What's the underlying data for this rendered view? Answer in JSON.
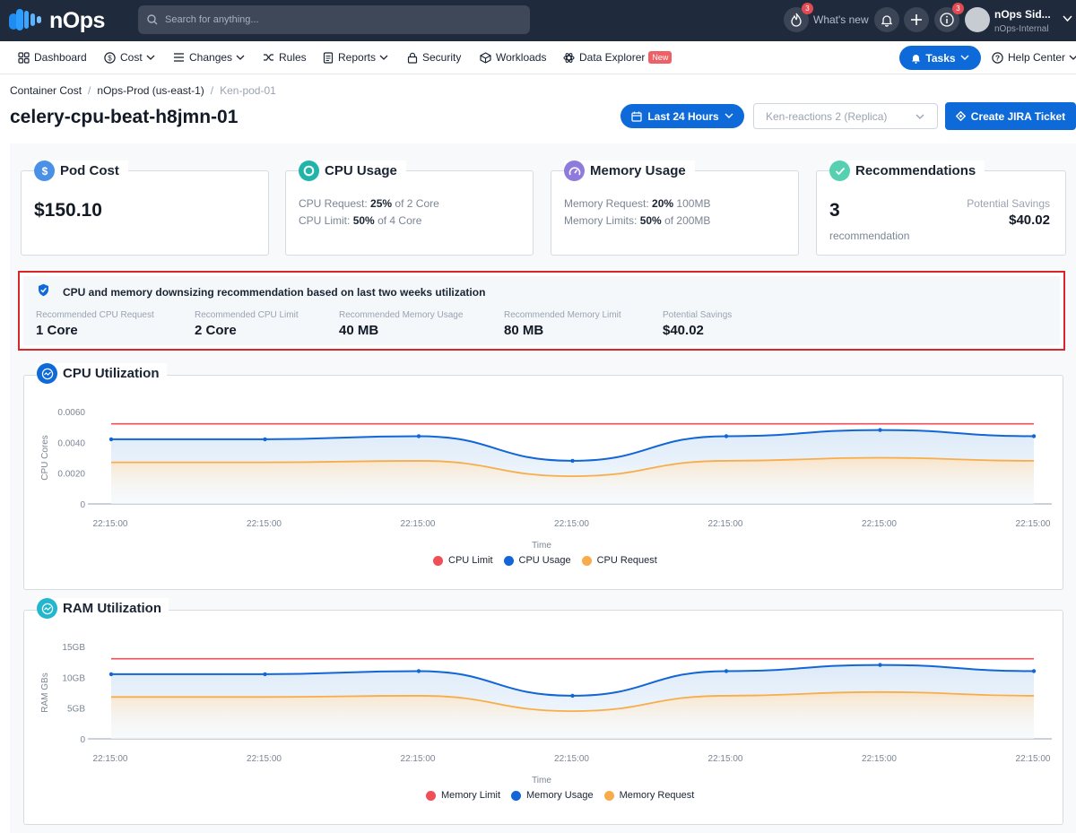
{
  "app": {
    "logo": "nOps",
    "search_placeholder": "Search for anything...",
    "streak_count": "3",
    "whats_new": "What's new",
    "info_count": "3",
    "user_name": "nOps Sid...",
    "user_org": "nOps-Internal"
  },
  "nav": {
    "items": [
      {
        "label": "Dashboard"
      },
      {
        "label": "Cost"
      },
      {
        "label": "Changes"
      },
      {
        "label": "Rules"
      },
      {
        "label": "Reports"
      },
      {
        "label": "Security"
      },
      {
        "label": "Workloads"
      },
      {
        "label": "Data Explorer"
      }
    ],
    "new_badge": "New",
    "tasks": "Tasks",
    "help": "Help Center"
  },
  "breadcrumb": [
    "Container Cost",
    "nOps-Prod (us-east-1)",
    "Ken-pod-01"
  ],
  "page": {
    "title": "celery-cpu-beat-h8jmn-01",
    "range": "Last 24 Hours",
    "cluster_select": "Ken-reactions 2 (Replica)",
    "jira": "Create JIRA Ticket"
  },
  "cards": {
    "pod_cost": {
      "title": "Pod Cost",
      "value": "$150.10"
    },
    "cpu": {
      "title": "CPU  Usage",
      "request_label": "CPU Request:",
      "request_pct": "25%",
      "request_rest": "of 2 Core",
      "limit_label": "CPU Limit:",
      "limit_pct": "50%",
      "limit_rest": "of 4 Core"
    },
    "memory": {
      "title": "Memory Usage",
      "request_label": "Memory Request:",
      "request_pct": "20%",
      "request_rest": "100MB",
      "limit_label": "Memory Limits:",
      "limit_pct": "50%",
      "limit_rest": "of 200MB"
    },
    "recommendations": {
      "title": "Recommendations",
      "count": "3",
      "count_label": "recommendation",
      "savings_label": "Potential Savings",
      "savings": "$40.02"
    }
  },
  "recommendation": {
    "title": "CPU and memory downsizing recommendation based on last two weeks utilization",
    "items": [
      {
        "label": "Recommended CPU Request",
        "value": "1 Core"
      },
      {
        "label": "Recommended CPU Limit",
        "value": "2 Core"
      },
      {
        "label": "Recommended Memory Usage",
        "value": "40 MB"
      },
      {
        "label": "Recommended Memory Limit",
        "value": "80 MB"
      },
      {
        "label": "Potential Savings",
        "value": "$40.02"
      }
    ]
  },
  "colors": {
    "limit": "#ef4f57",
    "usage": "#1266d6",
    "request": "#f7ad4b",
    "accent": "#0e6ad8"
  },
  "chart_data": [
    {
      "type": "line",
      "title": "CPU Utilization",
      "xlabel": "Time",
      "ylabel": "CPU Cores",
      "x": [
        "22:15:00",
        "22:15:00",
        "22:15:00",
        "22:15:00",
        "22:15:00",
        "22:15:00",
        "22:15:00"
      ],
      "ylim": [
        0,
        0.006
      ],
      "yticks": [
        0,
        0.002,
        0.004,
        0.006
      ],
      "yticklabels": [
        "0",
        "0.0020",
        "0.0040",
        "0.0060"
      ],
      "series": [
        {
          "name": "CPU Limit",
          "values": [
            0.0052,
            0.0052,
            0.0052,
            0.0052,
            0.0052,
            0.0052,
            0.0052
          ]
        },
        {
          "name": "CPU Usage",
          "values": [
            0.0042,
            0.0042,
            0.0044,
            0.0028,
            0.0044,
            0.0048,
            0.0044
          ]
        },
        {
          "name": "CPU Request",
          "values": [
            0.0027,
            0.0027,
            0.0028,
            0.0018,
            0.0028,
            0.003,
            0.0028
          ]
        }
      ]
    },
    {
      "type": "line",
      "title": "RAM Utilization",
      "xlabel": "Time",
      "ylabel": "RAM GBs",
      "x": [
        "22:15:00",
        "22:15:00",
        "22:15:00",
        "22:15:00",
        "22:15:00",
        "22:15:00",
        "22:15:00"
      ],
      "ylim": [
        0,
        15
      ],
      "yticks": [
        0,
        5,
        10,
        15
      ],
      "yticklabels": [
        "0",
        "5GB",
        "10GB",
        "15GB"
      ],
      "series": [
        {
          "name": "Memory Limit",
          "values": [
            13,
            13,
            13,
            13,
            13,
            13,
            13
          ]
        },
        {
          "name": "Memory Usage",
          "values": [
            10.5,
            10.5,
            11,
            7,
            11,
            12,
            11
          ]
        },
        {
          "name": "Memory Request",
          "values": [
            6.8,
            6.8,
            7,
            4.5,
            7,
            7.6,
            7
          ]
        }
      ]
    }
  ]
}
